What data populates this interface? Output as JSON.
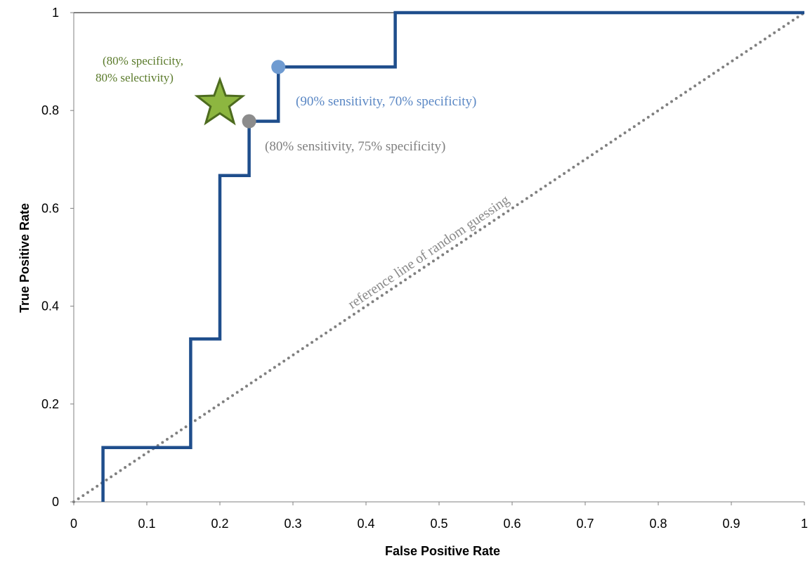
{
  "chart_data": {
    "type": "line",
    "xlabel": "False Positive Rate",
    "ylabel": "True Positive Rate",
    "xlim": [
      0,
      1
    ],
    "ylim": [
      0,
      1
    ],
    "x_ticks": [
      "0",
      "0.1",
      "0.2",
      "0.3",
      "0.4",
      "0.5",
      "0.6",
      "0.7",
      "0.8",
      "0.9",
      "1"
    ],
    "y_ticks": [
      "0",
      "0.2",
      "0.4",
      "0.6",
      "0.8",
      "1"
    ],
    "grid": false,
    "series": [
      {
        "color": "#1f4e8c",
        "style": "step",
        "points": [
          [
            0.04,
            0.0
          ],
          [
            0.04,
            0.111
          ],
          [
            0.16,
            0.111
          ],
          [
            0.16,
            0.333
          ],
          [
            0.2,
            0.333
          ],
          [
            0.2,
            0.667
          ],
          [
            0.24,
            0.667
          ],
          [
            0.24,
            0.778
          ],
          [
            0.28,
            0.778
          ],
          [
            0.28,
            0.889
          ],
          [
            0.44,
            0.889
          ],
          [
            0.44,
            1.0
          ],
          [
            1.0,
            1.0
          ]
        ]
      },
      {
        "color": "#808080",
        "style": "dotted",
        "points": [
          [
            0.0,
            0.0
          ],
          [
            1.0,
            1.0
          ]
        ]
      }
    ],
    "markers": [
      {
        "shape": "circle",
        "x": 0.28,
        "y": 0.889,
        "color": "#6f9bd1"
      },
      {
        "shape": "circle",
        "x": 0.24,
        "y": 0.778,
        "color": "#8c8c8c"
      },
      {
        "shape": "star",
        "x": 0.2,
        "y": 0.82,
        "color": "#8db640",
        "stroke": "#4d6b1f"
      }
    ],
    "annotations": [
      {
        "text": "(90% sensitivity, 70% specificity)",
        "color": "#5a87c4"
      },
      {
        "text": "(80% sensitivity, 75% specificity)",
        "color": "#7f7f7f"
      },
      {
        "lines": [
          "(80% specificity,",
          "80% selectivity)"
        ],
        "color": "#5a7a2a"
      },
      {
        "text": "reference line of random guessing",
        "color": "#8a8a8a"
      }
    ]
  }
}
